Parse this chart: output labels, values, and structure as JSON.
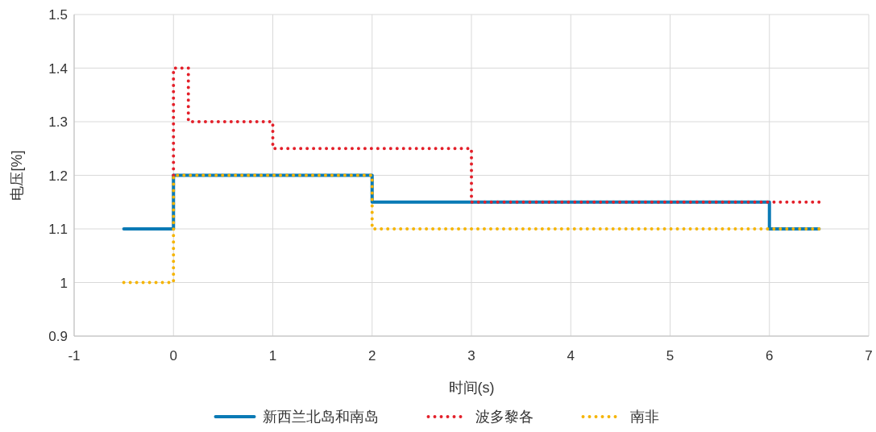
{
  "chart_data": {
    "type": "step",
    "xlabel": "时间(s)",
    "ylabel": "电压[%]",
    "xlim": [
      -1,
      7
    ],
    "ylim": [
      0.9,
      1.5
    ],
    "xticks": [
      -1,
      0,
      1,
      2,
      3,
      4,
      5,
      6,
      7
    ],
    "yticks": [
      0.9,
      1,
      1.1,
      1.2,
      1.3,
      1.4,
      1.5
    ],
    "grid": true,
    "legend": "bottom",
    "series": [
      {
        "name": "新西兰北岛和南岛",
        "color": "#0a7ab5",
        "line_style": "solid",
        "x": [
          -0.5,
          0,
          2,
          6,
          6.5
        ],
        "values": [
          1.1,
          1.2,
          1.15,
          1.1,
          1.1
        ]
      },
      {
        "name": "波多黎各",
        "color": "#e3202a",
        "line_style": "dotted",
        "x": [
          0,
          0,
          0.15,
          1,
          3,
          6.5
        ],
        "values": [
          1.2,
          1.4,
          1.3,
          1.25,
          1.15,
          1.15
        ]
      },
      {
        "name": "南非",
        "color": "#f5b400",
        "line_style": "dotted",
        "x": [
          -0.5,
          0,
          2,
          6.5
        ],
        "values": [
          1,
          1.2,
          1.1,
          1.1
        ]
      }
    ]
  }
}
